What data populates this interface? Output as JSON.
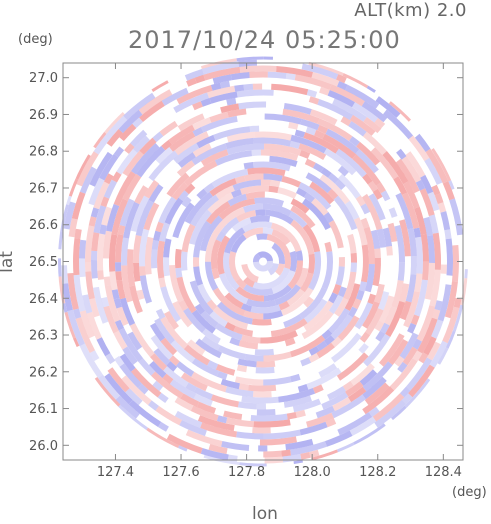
{
  "header": {
    "alt_label": "ALT(km)",
    "alt_value": "2.0",
    "timestamp": "2017/10/24 05:25:00"
  },
  "chart_data": {
    "type": "heatmap",
    "title": "2017/10/24 05:25:00",
    "xlabel": "lon",
    "ylabel": "lat",
    "x_unit": "(deg)",
    "y_unit": "(deg)",
    "xlim": [
      127.24,
      128.46
    ],
    "ylim": [
      25.96,
      27.04
    ],
    "x_ticks": [
      127.4,
      127.6,
      127.8,
      128.0,
      128.2,
      128.4
    ],
    "x_tick_labels": [
      "127.4",
      "127.6",
      "127.8",
      "128.0",
      "128.2",
      "128.4"
    ],
    "y_ticks": [
      26.0,
      26.1,
      26.2,
      26.3,
      26.4,
      26.5,
      26.6,
      26.7,
      26.8,
      26.9,
      27.0
    ],
    "y_tick_labels": [
      "26.0",
      "26.1",
      "26.2",
      "26.3",
      "26.4",
      "26.5",
      "26.6",
      "26.7",
      "26.8",
      "26.9",
      "27.0"
    ],
    "field_center": [
      127.85,
      26.5
    ],
    "colors": {
      "positive": "#f4a0a0",
      "negative": "#a8a8f0",
      "neutral": "#ffffff",
      "axis": "#888888"
    }
  }
}
